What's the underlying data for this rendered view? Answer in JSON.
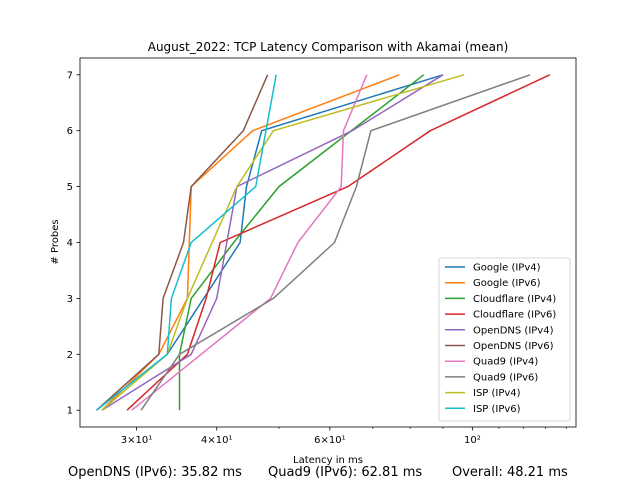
{
  "chart_data": {
    "type": "line",
    "title": "August_2022: TCP Latency Comparison with Akamai (mean)",
    "xlabel": "Latency in ms",
    "ylabel": "# Probes",
    "xscale": "log",
    "xlim": [
      24.5,
      145
    ],
    "ylim": [
      0.7,
      7.3
    ],
    "x_ticks": [
      {
        "value": 30,
        "label": "3×10¹"
      },
      {
        "value": 40,
        "label": "4×10¹"
      },
      {
        "value": 60,
        "label": "6×10¹"
      },
      {
        "value": 100,
        "label": "10²"
      }
    ],
    "y_ticks": [
      1,
      2,
      3,
      4,
      5,
      6,
      7
    ],
    "legend_position": "lower-right",
    "grid": false,
    "series": [
      {
        "name": "Google (IPv4)",
        "color": "#1f77b4",
        "x": [
          26.0,
          33.5,
          43.5,
          44.5,
          47.0,
          90.0
        ],
        "y": [
          1,
          2,
          4,
          5,
          6,
          7
        ]
      },
      {
        "name": "Google (IPv6)",
        "color": "#ff7f0e",
        "x": [
          26.5,
          32.5,
          36.0,
          36.5,
          45.5,
          77.0
        ],
        "y": [
          1,
          2,
          3,
          5,
          6,
          7
        ]
      },
      {
        "name": "Cloudflare (IPv4)",
        "color": "#2ca02c",
        "x": [
          35.0,
          35.0,
          36.5,
          42.5,
          50.0,
          84.0
        ],
        "y": [
          1,
          2,
          3,
          4,
          5,
          7
        ]
      },
      {
        "name": "Cloudflare (IPv6)",
        "color": "#d62728",
        "x": [
          29.0,
          36.0,
          38.5,
          40.5,
          64.0,
          86.0,
          132.0
        ],
        "y": [
          1,
          2,
          3,
          4,
          5,
          6,
          7
        ]
      },
      {
        "name": "OpenDNS (IPv4)",
        "color": "#9467bd",
        "x": [
          26.5,
          36.5,
          40.0,
          43.0,
          65.0,
          90.0
        ],
        "y": [
          1,
          2,
          3,
          5,
          6,
          7
        ]
      },
      {
        "name": "OpenDNS (IPv6)",
        "color": "#8c564b",
        "x": [
          26.0,
          32.5,
          33.0,
          35.5,
          36.5,
          44.0,
          48.0
        ],
        "y": [
          1,
          2,
          3,
          4,
          5,
          6,
          7
        ]
      },
      {
        "name": "Quad9 (IPv4)",
        "color": "#e377c2",
        "x": [
          29.5,
          48.5,
          53.5,
          62.5,
          63.0,
          68.5
        ],
        "y": [
          1,
          3,
          4,
          5,
          6,
          7
        ]
      },
      {
        "name": "Quad9 (IPv6)",
        "color": "#7f7f7f",
        "x": [
          30.5,
          35.0,
          49.0,
          61.0,
          66.0,
          69.5,
          123.0
        ],
        "y": [
          1,
          2,
          3,
          4,
          5,
          6,
          7
        ]
      },
      {
        "name": "ISP (IPv4)",
        "color": "#bcbd22",
        "x": [
          26.5,
          33.5,
          36.0,
          43.0,
          49.0,
          97.0
        ],
        "y": [
          1,
          2,
          3,
          5,
          6,
          7
        ]
      },
      {
        "name": "ISP (IPv6)",
        "color": "#17becf",
        "x": [
          26.0,
          33.5,
          34.0,
          36.5,
          46.0,
          49.5
        ],
        "y": [
          1,
          2,
          3,
          4,
          5,
          7
        ]
      }
    ]
  },
  "footer": {
    "opendns_ipv6": "OpenDNS (IPv6): 35.82 ms",
    "quad9_ipv6": "Quad9 (IPv6): 62.81 ms",
    "overall": "Overall: 48.21 ms"
  }
}
